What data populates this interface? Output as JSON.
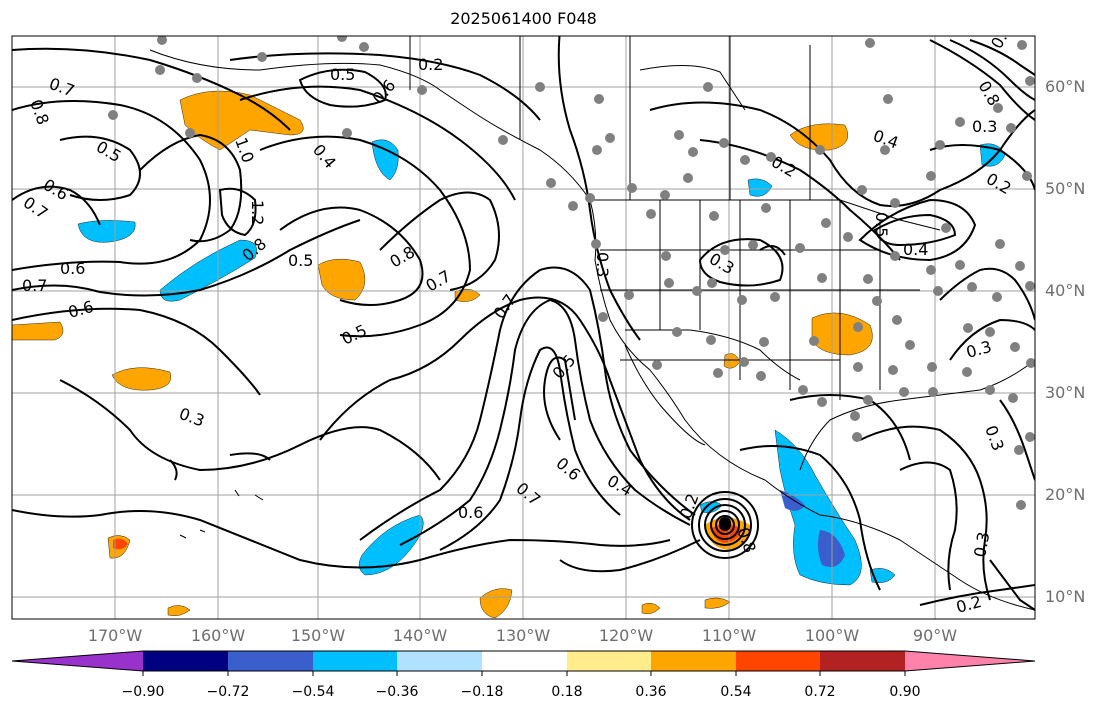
{
  "title": "2025061400 F048",
  "lat_labels": [
    "60°N",
    "50°N",
    "40°N",
    "30°N",
    "20°N",
    "10°N"
  ],
  "lon_labels": [
    "170°W",
    "160°W",
    "150°W",
    "140°W",
    "130°W",
    "120°W",
    "110°W",
    "100°W",
    "90°W"
  ],
  "contour_labels": [
    "0.2",
    "0.5",
    "0.6",
    "0.7",
    "0.8",
    "0.4",
    "1.0",
    "0.5",
    "0.6",
    "0.7",
    "1.2",
    "0.8",
    "0.5",
    "0.8",
    "0.7",
    "0.6",
    "0.7",
    "0.6",
    "0.5",
    "0.7",
    "0.5",
    "0.3",
    "0.6",
    "0.7",
    "0.4",
    "0.6",
    "0.2",
    "0.3",
    "0.4",
    "0.2",
    "0.5",
    "0.4",
    "0.3",
    "0.2",
    "0.3",
    "0.3",
    "0.3",
    "0.2",
    "0.4",
    "0.8",
    "0.8",
    "0.3"
  ],
  "colorbar": {
    "ticks": [
      "−0.90",
      "−0.72",
      "−0.54",
      "−0.36",
      "−0.18",
      "0.18",
      "0.36",
      "0.54",
      "0.72",
      "0.90"
    ],
    "colors": [
      "#9932cc",
      "#000080",
      "#3a5fcd",
      "#00bfff",
      "#b0e2ff",
      "#ffffff",
      "#ffec8b",
      "#ffa500",
      "#ff4500",
      "#b22222",
      "#ff82ab"
    ]
  },
  "shading_colors": {
    "light_blue": "#00bfff",
    "blue": "#3a5fcd",
    "orange": "#ffa500",
    "red": "#ff4500",
    "light_yellow": "#ffec8b"
  },
  "station_color": "#808080"
}
